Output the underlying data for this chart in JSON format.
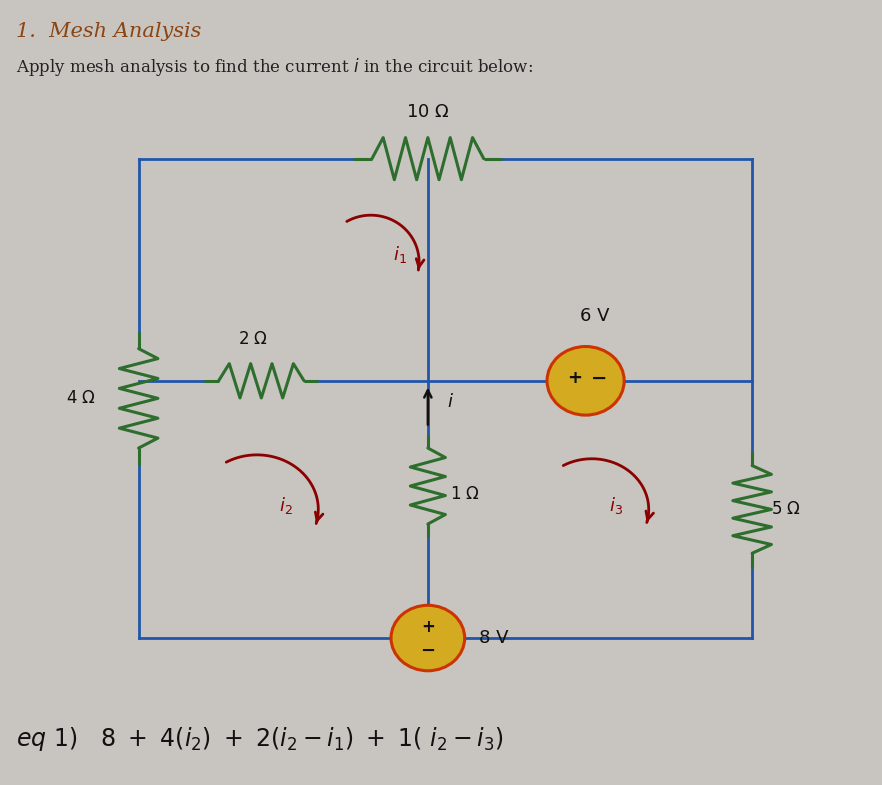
{
  "title": "1.  Mesh Analysis",
  "subtitle": "Apply mesh analysis to find the current $i$ in the circuit below:",
  "bg_color": "#c8c4c0",
  "wire_color": "#2255aa",
  "resistor_color": "#2d6e2d",
  "mesh_arrow_color": "#8B0000",
  "voltage_fill": "#d4aa20",
  "voltage_edge": "#cc3300",
  "title_color": "#8B4513",
  "L": 0.155,
  "R": 0.855,
  "T": 0.8,
  "M": 0.515,
  "B": 0.185,
  "MX": 0.485
}
